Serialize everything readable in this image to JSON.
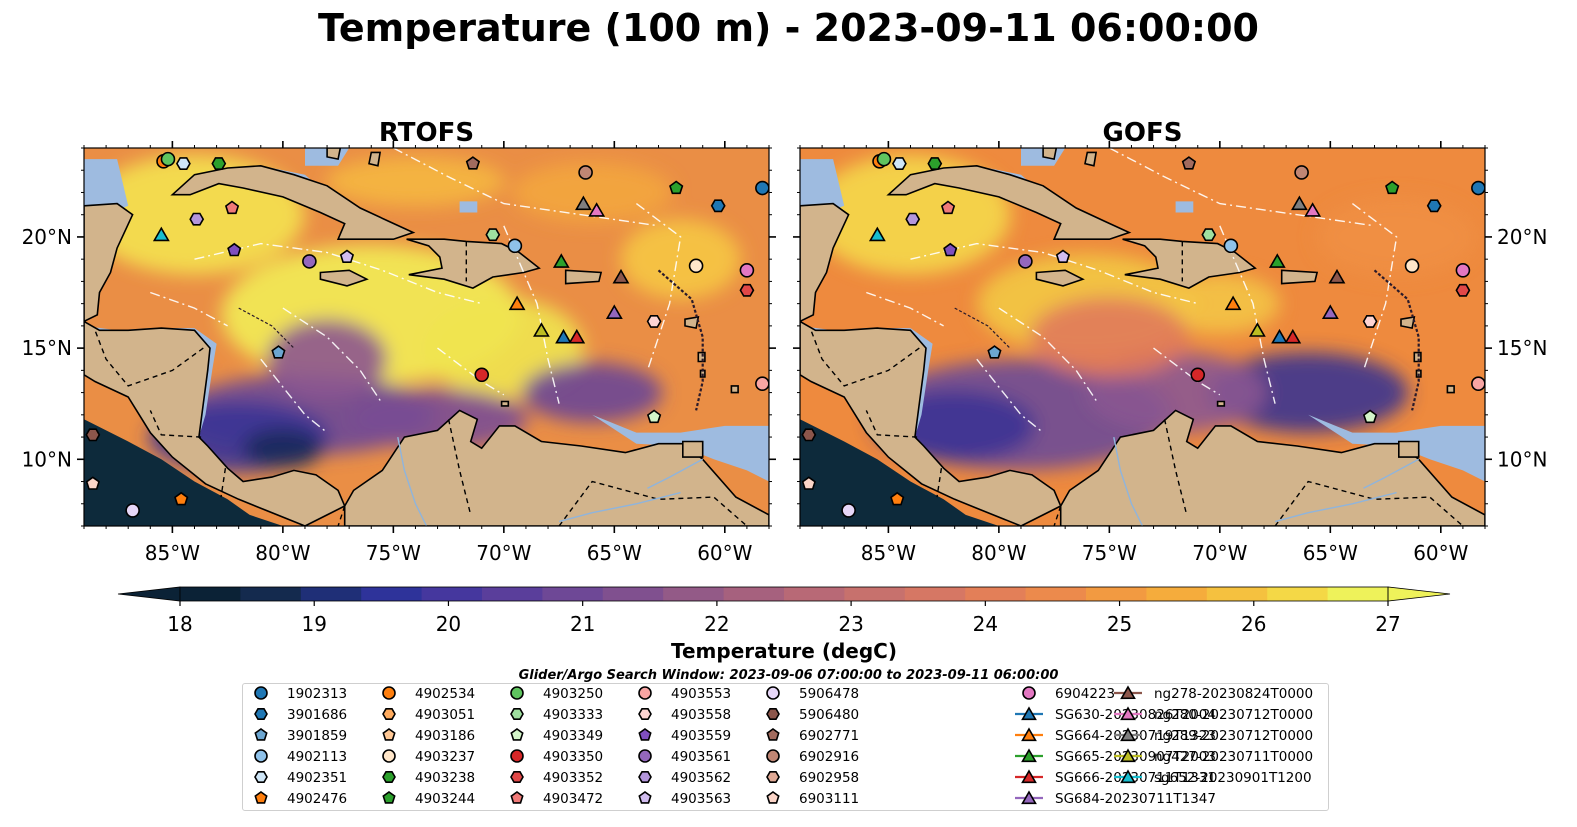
{
  "title": "Temperature (100 m) - 2023-09-11 06:00:00",
  "search_window": "Glider/Argo Search Window: 2023-09-06 07:00:00 to 2023-09-11 06:00:00",
  "colors": {
    "land": "#d2b48c",
    "shelf": "#9ebbe0",
    "deep": "#0d2a3b",
    "frame": "#000000"
  },
  "chart_data": [
    {
      "type": "heatmap",
      "title": "RTOFS",
      "x_ticks": [
        "85°W",
        "80°W",
        "75°W",
        "70°W",
        "65°W",
        "60°W"
      ],
      "y_ticks": [
        "20°N",
        "15°N",
        "10°N"
      ],
      "xlim": [
        -89,
        -58
      ],
      "ylim": [
        7,
        24
      ],
      "clim": [
        18,
        27
      ]
    },
    {
      "type": "heatmap",
      "title": "GOFS",
      "x_ticks": [
        "85°W",
        "80°W",
        "75°W",
        "70°W",
        "65°W",
        "60°W"
      ],
      "y_ticks": [
        "20°N",
        "15°N",
        "10°N"
      ],
      "xlim": [
        -89,
        -58
      ],
      "ylim": [
        7,
        24
      ],
      "clim": [
        18,
        27
      ]
    }
  ],
  "colorbar": {
    "label": "Temperature (degC)",
    "ticks": [
      "18",
      "19",
      "20",
      "21",
      "22",
      "23",
      "24",
      "25",
      "26",
      "27"
    ],
    "colors": [
      "#0b2236",
      "#142a4e",
      "#1f2f77",
      "#2e339a",
      "#45379e",
      "#5a3e9b",
      "#6e4896",
      "#80508f",
      "#935a87",
      "#a6617e",
      "#b86976",
      "#c7716d",
      "#d67764",
      "#e37f58",
      "#ec8a4c",
      "#f29a41",
      "#f5ac3c",
      "#f5c13f",
      "#f4d846",
      "#eef25a"
    ]
  },
  "legend": [
    {
      "label": "1902313",
      "marker": "circle",
      "color": "#1f77b4"
    },
    {
      "label": "3901686",
      "marker": "hexagon",
      "color": "#1f77b4"
    },
    {
      "label": "3901859",
      "marker": "pentagon",
      "color": "#6ca6d1"
    },
    {
      "label": "4902113",
      "marker": "circle",
      "color": "#8fc2ea"
    },
    {
      "label": "4902351",
      "marker": "hexagon",
      "color": "#cfe6f7"
    },
    {
      "label": "4902476",
      "marker": "pentagon",
      "color": "#ff7f0e"
    },
    {
      "label": "4902534",
      "marker": "circle",
      "color": "#ff7f0e"
    },
    {
      "label": "4903051",
      "marker": "hexagon",
      "color": "#ffab5e"
    },
    {
      "label": "4903186",
      "marker": "pentagon",
      "color": "#ffc895"
    },
    {
      "label": "4903237",
      "marker": "circle",
      "color": "#ffe6c9"
    },
    {
      "label": "4903238",
      "marker": "hexagon",
      "color": "#2ca02c"
    },
    {
      "label": "4903244",
      "marker": "pentagon",
      "color": "#2ca02c"
    },
    {
      "label": "4903250",
      "marker": "circle",
      "color": "#5fc45f"
    },
    {
      "label": "4903333",
      "marker": "hexagon",
      "color": "#9fdf9f"
    },
    {
      "label": "4903349",
      "marker": "pentagon",
      "color": "#d4f5c9"
    },
    {
      "label": "4903350",
      "marker": "circle",
      "color": "#d62728"
    },
    {
      "label": "4903352",
      "marker": "hexagon",
      "color": "#e04848"
    },
    {
      "label": "4903472",
      "marker": "pentagon",
      "color": "#f07a78"
    },
    {
      "label": "4903553",
      "marker": "circle",
      "color": "#f8a5a3"
    },
    {
      "label": "4903558",
      "marker": "hexagon",
      "color": "#fdd4d2"
    },
    {
      "label": "4903559",
      "marker": "pentagon",
      "color": "#7f4fbf"
    },
    {
      "label": "4903561",
      "marker": "circle",
      "color": "#9467bd"
    },
    {
      "label": "4903562",
      "marker": "hexagon",
      "color": "#b496dc"
    },
    {
      "label": "4903563",
      "marker": "pentagon",
      "color": "#d2bdf0"
    },
    {
      "label": "5906478",
      "marker": "circle",
      "color": "#e6d6f7"
    },
    {
      "label": "5906480",
      "marker": "hexagon",
      "color": "#8c564b"
    },
    {
      "label": "6902771",
      "marker": "pentagon",
      "color": "#a26b5e"
    },
    {
      "label": "6902916",
      "marker": "circle",
      "color": "#c08674"
    },
    {
      "label": "6902958",
      "marker": "hexagon",
      "color": "#e0a995"
    },
    {
      "label": "6903111",
      "marker": "pentagon",
      "color": "#fbd5c8"
    },
    {
      "label": "6904223",
      "marker": "circle",
      "color": "#e377c2"
    },
    {
      "label": "SG630-20230826T2004",
      "marker": "triangle",
      "color": "#1f77b4"
    },
    {
      "label": "SG664-20230719T1323",
      "marker": "triangle",
      "color": "#ff7f0e"
    },
    {
      "label": "SG665-20230907T2003",
      "marker": "triangle",
      "color": "#2ca02c"
    },
    {
      "label": "SG666-20230711T1331",
      "marker": "triangle",
      "color": "#d62728"
    },
    {
      "label": "SG684-20230711T1347",
      "marker": "triangle",
      "color": "#9467bd"
    },
    {
      "label": "ng278-20230824T0000",
      "marker": "triangle",
      "color": "#8c564b"
    },
    {
      "label": "ng280-20230712T0000",
      "marker": "triangle",
      "color": "#e377c2"
    },
    {
      "label": "ng289-20230712T0000",
      "marker": "triangle",
      "color": "#7f7f7f"
    },
    {
      "label": "ng427-20230711T0000",
      "marker": "triangle",
      "color": "#bcbd22"
    },
    {
      "label": "sg652-20230901T1200",
      "marker": "triangle",
      "color": "#17becf"
    }
  ],
  "observations": [
    {
      "id": "1902313",
      "lon": -58.3,
      "lat": 22.2
    },
    {
      "id": "3901686",
      "lon": -60.3,
      "lat": 21.4
    },
    {
      "id": "3901859",
      "lon": -80.2,
      "lat": 14.8
    },
    {
      "id": "4902113",
      "lon": -69.5,
      "lat": 19.6
    },
    {
      "id": "4902476",
      "lon": -84.6,
      "lat": 8.2
    },
    {
      "id": "4902534",
      "lon": -85.4,
      "lat": 23.4
    },
    {
      "id": "4903238",
      "lon": -82.9,
      "lat": 23.3
    },
    {
      "id": "4903244",
      "lon": -62.2,
      "lat": 22.2
    },
    {
      "id": "4903250",
      "lon": -85.2,
      "lat": 23.5
    },
    {
      "id": "4903333",
      "lon": -70.5,
      "lat": 20.1
    },
    {
      "id": "4903349",
      "lon": -63.2,
      "lat": 11.9
    },
    {
      "id": "4903350",
      "lon": -71.0,
      "lat": 13.8
    },
    {
      "id": "4903352",
      "lon": -59.0,
      "lat": 17.6
    },
    {
      "id": "4903553",
      "lon": -58.3,
      "lat": 13.4
    },
    {
      "id": "4903558",
      "lon": -63.2,
      "lat": 16.2
    },
    {
      "id": "4903559",
      "lon": -82.2,
      "lat": 19.4
    },
    {
      "id": "4903561",
      "lon": -78.8,
      "lat": 18.9
    },
    {
      "id": "4903562",
      "lon": -83.9,
      "lat": 20.8
    },
    {
      "id": "4903563",
      "lon": -77.1,
      "lat": 19.1
    },
    {
      "id": "5906478",
      "lon": -86.8,
      "lat": 7.7
    },
    {
      "id": "5906480",
      "lon": -88.6,
      "lat": 11.1
    },
    {
      "id": "6902771",
      "lon": -71.4,
      "lat": 23.3
    },
    {
      "id": "6902916",
      "lon": -66.3,
      "lat": 22.9
    },
    {
      "id": "6903111",
      "lon": -88.6,
      "lat": 8.9
    },
    {
      "id": "6904223",
      "lon": -59.0,
      "lat": 18.5
    },
    {
      "id": "4903472",
      "lon": -82.3,
      "lat": 21.3
    },
    {
      "id": "4902351",
      "lon": -84.5,
      "lat": 23.3
    },
    {
      "id": "4903237",
      "lon": -61.3,
      "lat": 18.7
    },
    {
      "id": "SG630-20230826T2004",
      "lon": -67.3,
      "lat": 15.5
    },
    {
      "id": "SG664-20230719T1323",
      "lon": -69.4,
      "lat": 17.0
    },
    {
      "id": "SG665-20230907T2003",
      "lon": -67.4,
      "lat": 18.9
    },
    {
      "id": "SG666-20230711T1331",
      "lon": -66.7,
      "lat": 15.5
    },
    {
      "id": "SG684-20230711T1347",
      "lon": -65.0,
      "lat": 16.6
    },
    {
      "id": "ng278-20230824T0000",
      "lon": -64.7,
      "lat": 18.2
    },
    {
      "id": "ng280-20230712T0000",
      "lon": -65.8,
      "lat": 21.2
    },
    {
      "id": "ng289-20230712T0000",
      "lon": -66.4,
      "lat": 21.5
    },
    {
      "id": "ng427-20230711T0000",
      "lon": -68.3,
      "lat": 15.8
    },
    {
      "id": "sg652-20230901T1200",
      "lon": -85.5,
      "lat": 20.1
    }
  ]
}
